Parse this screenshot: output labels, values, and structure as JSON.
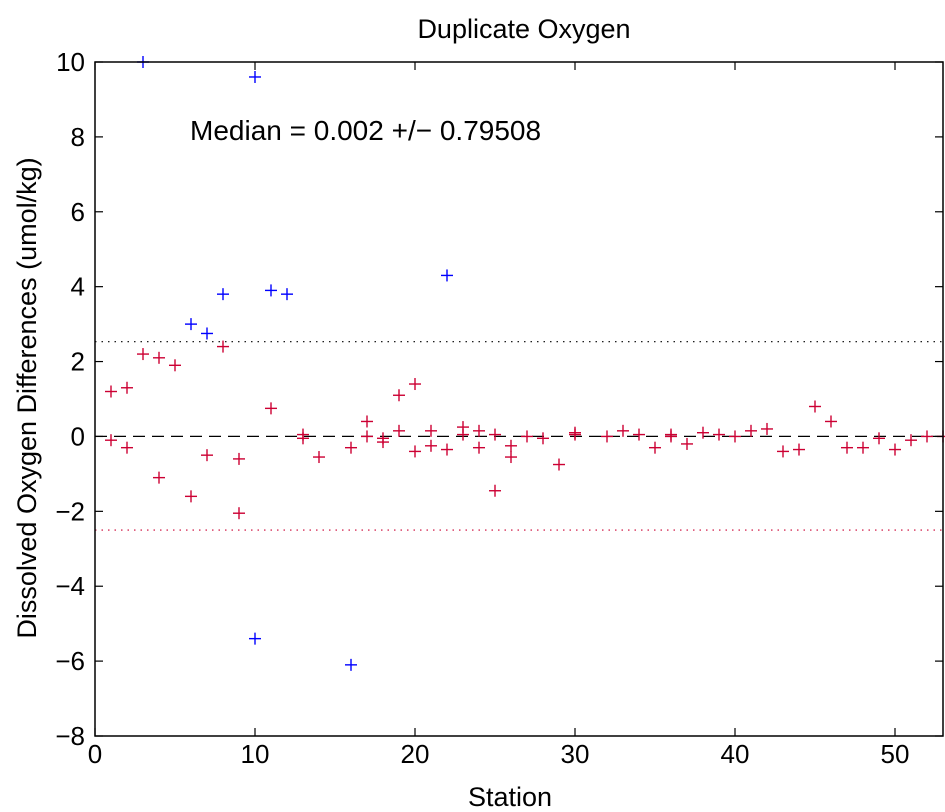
{
  "chart_data": {
    "type": "scatter",
    "title": "Duplicate Oxygen",
    "xlabel": "Station",
    "ylabel": "Dissolved Oxygen Differences (umol/kg)",
    "annotation": "Median = 0.002 +/− 0.79508",
    "xlim": [
      0,
      53
    ],
    "ylim": [
      -8,
      10
    ],
    "xticks": [
      0,
      10,
      20,
      30,
      40,
      50
    ],
    "yticks": [
      -8,
      -6,
      -4,
      -2,
      0,
      2,
      4,
      6,
      8,
      10
    ],
    "grid": false,
    "reference_lines": [
      {
        "y": 0.002,
        "style": "dashed",
        "color": "#000000"
      },
      {
        "y": 2.53,
        "style": "dotted",
        "color": "#000000"
      },
      {
        "y": -2.5,
        "style": "dotted",
        "color": "#cc0033"
      }
    ],
    "series": [
      {
        "marker": "+",
        "color": "#0000ff",
        "points": [
          [
            3,
            10.0
          ],
          [
            10,
            9.6
          ],
          [
            6,
            3.0
          ],
          [
            7,
            2.75
          ],
          [
            8,
            3.8
          ],
          [
            11,
            3.9
          ],
          [
            12,
            3.8
          ],
          [
            22,
            4.3
          ],
          [
            10,
            -5.4
          ],
          [
            16,
            -6.1
          ]
        ]
      },
      {
        "marker": "+",
        "color": "#cc0033",
        "points": [
          [
            1,
            1.2
          ],
          [
            1,
            -0.1
          ],
          [
            2,
            1.3
          ],
          [
            2,
            -0.3
          ],
          [
            3,
            2.2
          ],
          [
            4,
            2.1
          ],
          [
            4,
            -1.1
          ],
          [
            5,
            1.9
          ],
          [
            6,
            -1.6
          ],
          [
            7,
            -0.5
          ],
          [
            8,
            2.4
          ],
          [
            9,
            -0.6
          ],
          [
            9,
            -2.05
          ],
          [
            11,
            0.75
          ],
          [
            13,
            0.05
          ],
          [
            13,
            -0.05
          ],
          [
            14,
            -0.55
          ],
          [
            16,
            -0.3
          ],
          [
            17,
            0.4
          ],
          [
            17,
            0.0
          ],
          [
            18,
            -0.05
          ],
          [
            18,
            -0.15
          ],
          [
            19,
            1.1
          ],
          [
            19,
            0.15
          ],
          [
            20,
            1.4
          ],
          [
            20,
            -0.4
          ],
          [
            21,
            0.15
          ],
          [
            21,
            -0.25
          ],
          [
            22,
            -0.35
          ],
          [
            23,
            0.25
          ],
          [
            23,
            0.05
          ],
          [
            24,
            0.15
          ],
          [
            24,
            -0.3
          ],
          [
            25,
            0.05
          ],
          [
            25,
            -1.45
          ],
          [
            26,
            -0.25
          ],
          [
            26,
            -0.55
          ],
          [
            27,
            0.0
          ],
          [
            28,
            -0.05
          ],
          [
            29,
            -0.75
          ],
          [
            30,
            0.1
          ],
          [
            30,
            0.05
          ],
          [
            32,
            0.0
          ],
          [
            33,
            0.15
          ],
          [
            34,
            0.05
          ],
          [
            35,
            -0.3
          ],
          [
            36,
            0.05
          ],
          [
            36,
            0.0
          ],
          [
            37,
            -0.2
          ],
          [
            38,
            0.1
          ],
          [
            39,
            0.05
          ],
          [
            40,
            0.0
          ],
          [
            41,
            0.15
          ],
          [
            42,
            0.2
          ],
          [
            43,
            -0.4
          ],
          [
            44,
            -0.35
          ],
          [
            45,
            0.8
          ],
          [
            46,
            0.4
          ],
          [
            47,
            -0.3
          ],
          [
            48,
            -0.3
          ],
          [
            49,
            -0.05
          ],
          [
            50,
            -0.35
          ],
          [
            51,
            -0.1
          ],
          [
            52,
            0.0
          ],
          [
            53,
            0.0
          ]
        ]
      }
    ]
  }
}
